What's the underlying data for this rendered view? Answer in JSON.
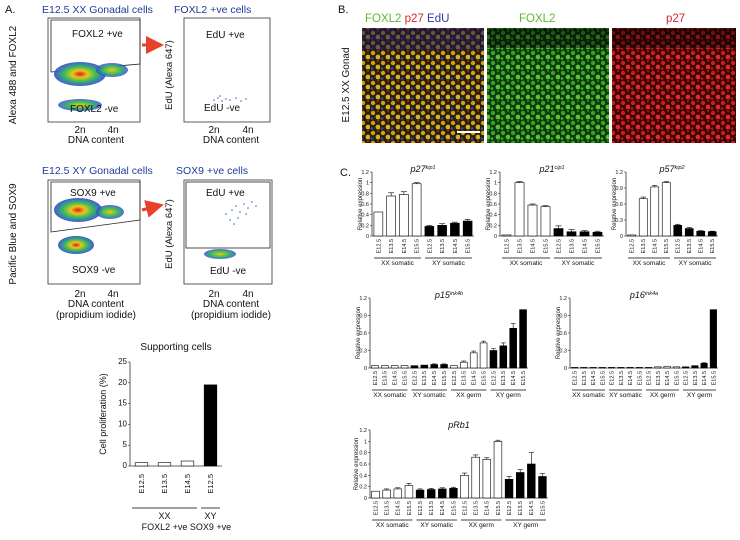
{
  "panel_labels": {
    "a": "A.",
    "b": "B.",
    "c": "C."
  },
  "flow": {
    "xx": {
      "title": "E12.5 XX Gonadal cells",
      "y_axis": "Alexa 488 and FOXL2",
      "gate_pos": "FOXL2 +ve",
      "gate_neg": "FOXL2 -ve",
      "x_ticks": [
        "2n",
        "4n"
      ],
      "x_axis": "DNA content",
      "sub_title": "FOXL2 +ve cells",
      "sub_y_axis": "EdU (Alexa 647)",
      "sub_pos": "EdU +ve",
      "sub_neg": "EdU -ve",
      "sub_x_ticks": [
        "2n",
        "4n"
      ],
      "sub_x_axis": "DNA content"
    },
    "xy": {
      "title": "E12.5 XY Gonadal cells",
      "y_axis": "Pacific Blue and SOX9",
      "gate_pos": "SOX9 +ve",
      "gate_neg": "SOX9 -ve",
      "x_ticks": [
        "2n",
        "4n"
      ],
      "x_axis": "DNA content",
      "x_axis_2": "(propidium iodide)",
      "sub_title": "SOX9 +ve cells",
      "sub_y_axis": "EdU (Alexa 647)",
      "sub_pos": "EdU +ve",
      "sub_neg": "EdU -ve",
      "sub_x_ticks": [
        "2n",
        "4n"
      ],
      "sub_x_axis": "DNA content",
      "sub_x_axis_2": "(propidium iodide)"
    }
  },
  "micrograph": {
    "side_label": "E12.5 XX Gonad",
    "merge_title": [
      {
        "text": "FOXL2",
        "color": "#5db82e"
      },
      {
        "text": " p27",
        "color": "#d7262c"
      },
      {
        "text": " EdU",
        "color": "#2b3aa8"
      }
    ],
    "panel2_title": "FOXL2",
    "panel3_title": "p27",
    "colors": {
      "green": "#5db82e",
      "red": "#d7262c",
      "blue": "#2b3aa8"
    }
  },
  "chart_data": [
    {
      "id": "supporting",
      "type": "bar",
      "title": "Supporting cells",
      "ylabel": "Cell proliferation (%)",
      "ylim": [
        0,
        25
      ],
      "yticks": [
        0,
        5,
        10,
        15,
        20,
        25
      ],
      "categories": [
        "E12.5",
        "E13.5",
        "E14.5",
        "E12.5"
      ],
      "values": [
        0.8,
        0.8,
        1.2,
        19.5
      ],
      "groups": [
        {
          "label": "XX",
          "sublabel": "FOXL2 +ve",
          "count": 3
        },
        {
          "label": "XY",
          "sublabel": "SOX9 +ve",
          "count": 1
        }
      ]
    },
    {
      "id": "p27",
      "type": "bar",
      "title_base": "p27",
      "title_sup": "kip1",
      "ylabel": "Relative expression",
      "ylim": [
        0,
        1.2
      ],
      "yticks": [
        "0",
        "0.2",
        "0.4",
        "0.6",
        "0.8",
        "1",
        "1.2"
      ],
      "categories": [
        "E12.5",
        "E13.5",
        "E14.5",
        "E15.5",
        "E12.5",
        "E13.5",
        "E14.5",
        "E15.5"
      ],
      "values": [
        0.45,
        0.75,
        0.78,
        0.98,
        0.18,
        0.2,
        0.24,
        0.28
      ],
      "errors": [
        0,
        0.06,
        0.05,
        0.02,
        0.02,
        0.03,
        0.02,
        0.03
      ],
      "filled": [
        false,
        false,
        false,
        false,
        true,
        true,
        true,
        true
      ],
      "groups": [
        {
          "label": "XX somatic",
          "count": 4
        },
        {
          "label": "XY somatic",
          "count": 4
        }
      ]
    },
    {
      "id": "p21",
      "type": "bar",
      "title_base": "p21",
      "title_sup": "cip1",
      "ylabel": "Relative expression",
      "ylim": [
        0,
        1.2
      ],
      "yticks": [
        "0",
        "0.2",
        "0.4",
        "0.6",
        "0.8",
        "1",
        "1.2"
      ],
      "categories": [
        "E12.5",
        "E13.5",
        "E14.5",
        "E15.5",
        "E12.5",
        "E13.5",
        "E14.5",
        "E15.5"
      ],
      "values": [
        0.02,
        1.0,
        0.58,
        0.55,
        0.14,
        0.08,
        0.08,
        0.07
      ],
      "errors": [
        0,
        0.02,
        0.02,
        0.02,
        0.05,
        0.04,
        0.02,
        0.02
      ],
      "filled": [
        false,
        false,
        false,
        false,
        true,
        true,
        true,
        true
      ],
      "groups": [
        {
          "label": "XX somatic",
          "count": 4
        },
        {
          "label": "XY somatic",
          "count": 4
        }
      ]
    },
    {
      "id": "p57",
      "type": "bar",
      "title_base": "p57",
      "title_sup": "kip2",
      "ylabel": "Relative expression",
      "ylim": [
        0,
        1.2
      ],
      "yticks": [
        "0",
        "0.3",
        "0.6",
        "0.9",
        "1.2"
      ],
      "categories": [
        "E12.5",
        "E13.5",
        "E14.5",
        "E15.5",
        "E12.5",
        "E13.5",
        "E14.5",
        "E15.5"
      ],
      "values": [
        0.02,
        0.7,
        0.92,
        1.0,
        0.2,
        0.14,
        0.09,
        0.08
      ],
      "errors": [
        0,
        0.03,
        0.03,
        0.02,
        0.02,
        0.02,
        0.01,
        0.01
      ],
      "filled": [
        false,
        false,
        false,
        false,
        true,
        true,
        true,
        true
      ],
      "groups": [
        {
          "label": "XX somatic",
          "count": 4
        },
        {
          "label": "XY somatic",
          "count": 4
        }
      ]
    },
    {
      "id": "p15",
      "type": "bar",
      "title_base": "p15",
      "title_sup": "ink4b",
      "ylabel": "Relative expression",
      "ylim": [
        0,
        1.2
      ],
      "yticks": [
        "0",
        "0.3",
        "0.6",
        "0.9",
        "1.2"
      ],
      "categories": [
        "E12.5",
        "E13.5",
        "E14.5",
        "E15.5",
        "E12.5",
        "E13.5",
        "E14.5",
        "E15.5",
        "E12.5",
        "E13.5",
        "E14.5",
        "E15.5",
        "E12.5",
        "E13.5",
        "E14.5",
        "E15.5"
      ],
      "values": [
        0.04,
        0.04,
        0.04,
        0.04,
        0.04,
        0.05,
        0.06,
        0.06,
        0.04,
        0.1,
        0.26,
        0.43,
        0.3,
        0.38,
        0.68,
        1.0
      ],
      "errors": [
        0,
        0,
        0,
        0,
        0,
        0,
        0.01,
        0.01,
        0,
        0.02,
        0.03,
        0.03,
        0.03,
        0.05,
        0.08,
        0
      ],
      "filled": [
        false,
        false,
        false,
        false,
        true,
        true,
        true,
        true,
        false,
        false,
        false,
        false,
        true,
        true,
        true,
        true
      ],
      "groups": [
        {
          "label": "XX somatic",
          "count": 4
        },
        {
          "label": "XY somatic",
          "count": 4
        },
        {
          "label": "XX germ",
          "count": 4
        },
        {
          "label": "XY germ",
          "count": 4
        }
      ]
    },
    {
      "id": "p16",
      "type": "bar",
      "title_base": "p16",
      "title_sup": "ink4a",
      "ylabel": "Relative expression",
      "ylim": [
        0,
        1.2
      ],
      "yticks": [
        "0",
        "0.3",
        "0.6",
        "0.9",
        "1.2"
      ],
      "categories": [
        "E12.5",
        "E13.5",
        "E14.5",
        "E15.5",
        "E12.5",
        "E13.5",
        "E14.5",
        "E15.5",
        "E12.5",
        "E13.5",
        "E14.5",
        "E15.5",
        "E12.5",
        "E13.5",
        "E14.5",
        "E15.5"
      ],
      "values": [
        0.01,
        0.01,
        0.01,
        0.01,
        0.01,
        0.01,
        0.01,
        0.01,
        0.01,
        0.02,
        0.03,
        0.02,
        0.02,
        0.04,
        0.08,
        1.0
      ],
      "errors": [
        0,
        0,
        0,
        0,
        0,
        0,
        0,
        0,
        0,
        0,
        0,
        0,
        0,
        0,
        0.01,
        0
      ],
      "filled": [
        false,
        false,
        false,
        false,
        true,
        true,
        true,
        true,
        false,
        false,
        false,
        false,
        true,
        true,
        true,
        true
      ],
      "groups": [
        {
          "label": "XX somatic",
          "count": 4
        },
        {
          "label": "XY somatic",
          "count": 4
        },
        {
          "label": "XX germ",
          "count": 4
        },
        {
          "label": "XY germ",
          "count": 4
        }
      ]
    },
    {
      "id": "pRb1",
      "type": "bar",
      "title_base": "pRb1",
      "title_sup": "",
      "ylabel": "Relative expression",
      "ylim": [
        0,
        1.2
      ],
      "yticks": [
        "0",
        "0.2",
        "0.4",
        "0.6",
        "0.8",
        "1",
        "1.2"
      ],
      "categories": [
        "E12.5",
        "E13.5",
        "E14.5",
        "E15.5",
        "E12.5",
        "E13.5",
        "E14.5",
        "E15.5",
        "E12.5",
        "E13.5",
        "E14.5",
        "E15.5",
        "E12.5",
        "E13.5",
        "E14.5",
        "E15.5"
      ],
      "values": [
        0.12,
        0.14,
        0.16,
        0.22,
        0.14,
        0.15,
        0.16,
        0.17,
        0.4,
        0.72,
        0.68,
        1.0,
        0.33,
        0.45,
        0.6,
        0.38
      ],
      "errors": [
        0,
        0.02,
        0.02,
        0.04,
        0.02,
        0.02,
        0.02,
        0.02,
        0.04,
        0.04,
        0.03,
        0.02,
        0.05,
        0.05,
        0.2,
        0.05
      ],
      "filled": [
        false,
        false,
        false,
        false,
        true,
        true,
        true,
        true,
        false,
        false,
        false,
        false,
        true,
        true,
        true,
        true
      ],
      "groups": [
        {
          "label": "XX somatic",
          "count": 4
        },
        {
          "label": "XY somatic",
          "count": 4
        },
        {
          "label": "XX germ",
          "count": 4
        },
        {
          "label": "XY germ",
          "count": 4
        }
      ]
    }
  ]
}
